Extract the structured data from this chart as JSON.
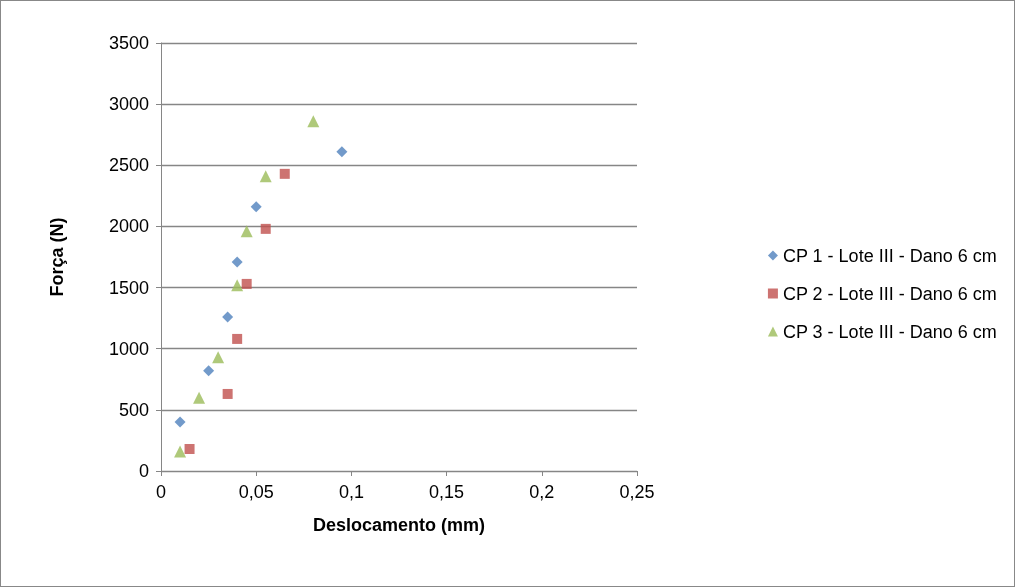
{
  "chart_data": {
    "type": "scatter",
    "xlabel": "Deslocamento (mm)",
    "ylabel": "Força (N)",
    "xlim": [
      0,
      0.25
    ],
    "xticks": [
      {
        "value": 0,
        "label": "0"
      },
      {
        "value": 0.05,
        "label": "0,05"
      },
      {
        "value": 0.1,
        "label": "0,1"
      },
      {
        "value": 0.15,
        "label": "0,15"
      },
      {
        "value": 0.2,
        "label": "0,2"
      },
      {
        "value": 0.25,
        "label": "0,25"
      }
    ],
    "ylim": [
      0,
      3500
    ],
    "yticks": [
      0,
      500,
      1000,
      1500,
      2000,
      2500,
      3000,
      3500
    ],
    "grid": "y",
    "legend": "right",
    "series": [
      {
        "name": "CP 1 - Lote III - Dano 6 cm",
        "color": "#4f81bd",
        "marker": "diamond",
        "x": [
          0.01,
          0.025,
          0.035,
          0.04,
          0.05,
          0.095
        ],
        "values": [
          400,
          820,
          1260,
          1710,
          2160,
          2610
        ]
      },
      {
        "name": "CP 2 - Lote III - Dano 6 cm",
        "color": "#c0504d",
        "marker": "square",
        "x": [
          0.015,
          0.035,
          0.04,
          0.045,
          0.055,
          0.065
        ],
        "values": [
          180,
          630,
          1080,
          1530,
          1980,
          2430
        ]
      },
      {
        "name": "CP 3 - Lote III - Dano 6 cm",
        "color": "#9bbb59",
        "marker": "triangle",
        "x": [
          0.01,
          0.02,
          0.03,
          0.04,
          0.045,
          0.055,
          0.08
        ],
        "values": [
          160,
          600,
          930,
          1520,
          1960,
          2410,
          2860
        ]
      }
    ]
  }
}
